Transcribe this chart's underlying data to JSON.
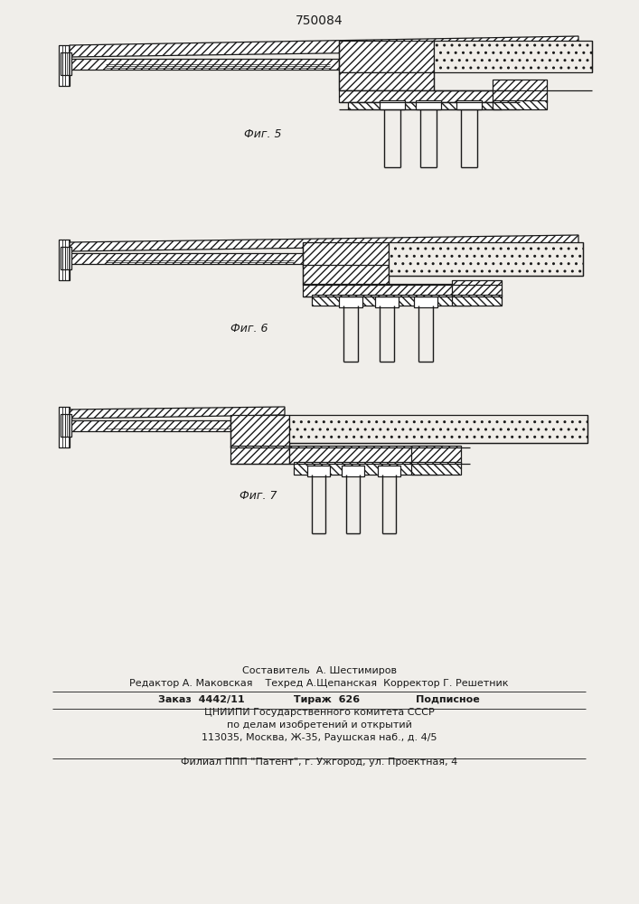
{
  "patent_number": "750084",
  "fig5_label": "Фиг. 5",
  "fig6_label": "Фиг. 6",
  "fig7_label": "Фиг. 7",
  "background_color": "#f0eeea",
  "line_color": "#1a1a1a",
  "footer_lines": [
    "Составитель  А. Шестимиров",
    "Редактор А. Маковская    Техред А.Щепанская  Корректор Г. Решетник",
    "Заказ  4442/11              Тираж  626                Подписное",
    "ЦНИИПИ Государственного комитета СССР",
    "по делам изобретений и открытий",
    "113035, Москва, Ж-35, Раушская наб., д. 4/5",
    "Филиал ППП \"Патент\", г. Ужгород, ул. Проектная, 4"
  ],
  "page_width": 7.07,
  "page_height": 10.0
}
